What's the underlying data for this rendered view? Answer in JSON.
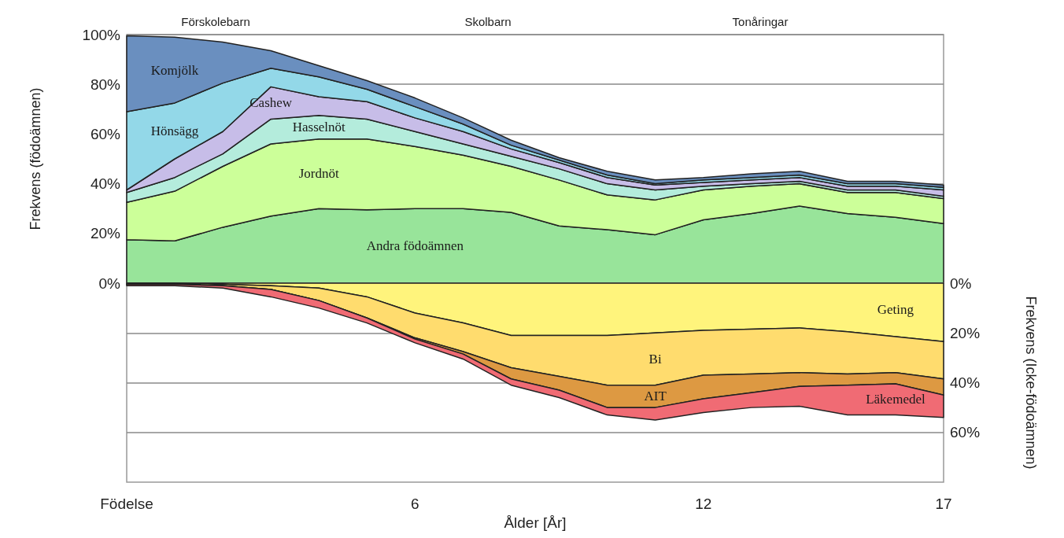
{
  "chart_data": [
    {
      "type": "area",
      "stacked": true,
      "ylabel": "Frekvens (födoämnen)",
      "annotations": [
        "Förskolebarn",
        "Skolbarn",
        "Tonåringar"
      ],
      "x": [
        0,
        1,
        2,
        3,
        4,
        5,
        6,
        7,
        8,
        9,
        10,
        11,
        12,
        13,
        14,
        15,
        16,
        17
      ],
      "xlim": [
        0,
        17
      ],
      "tick_labels": "y",
      "ylim": [
        0,
        100
      ],
      "yticks": [
        {
          "value": 0,
          "label": "0%"
        },
        {
          "value": 20,
          "label": "20%"
        },
        {
          "value": 40,
          "label": "40%"
        },
        {
          "value": 60,
          "label": "60%"
        },
        {
          "value": 80,
          "label": "80%"
        },
        {
          "value": 100,
          "label": "100%"
        }
      ],
      "grid": "y",
      "series": [
        {
          "name": "Andra födoämnen",
          "color": "#98e49a",
          "values": [
            17.5,
            17,
            22.5,
            27,
            30,
            29.5,
            30,
            30,
            28.5,
            23,
            21.5,
            19.5,
            25.5,
            28,
            31,
            28,
            26.5,
            24
          ]
        },
        {
          "name": "Jordnöt",
          "color": "#ccff99",
          "values": [
            15,
            20,
            24.5,
            29,
            28,
            28.5,
            25,
            21.5,
            18.5,
            18.5,
            14,
            14,
            12,
            11,
            9,
            8.5,
            10,
            10
          ]
        },
        {
          "name": "Hasselnöt",
          "color": "#b4ecdc",
          "values": [
            4,
            5.5,
            5,
            10,
            9.5,
            8,
            6,
            4.5,
            4,
            4.5,
            4.5,
            4,
            1.5,
            1,
            1,
            1,
            1,
            1
          ]
        },
        {
          "name": "Cashew",
          "color": "#c7bde8",
          "values": [
            1,
            7.5,
            9,
            13,
            7.5,
            7,
            5.5,
            5,
            3,
            2.5,
            2.5,
            2,
            1.5,
            1.5,
            1.5,
            1.5,
            1.5,
            2.5
          ]
        },
        {
          "name": "Hönsägg",
          "color": "#93d8e8",
          "values": [
            31.5,
            22.5,
            19.5,
            7.5,
            8,
            5,
            4.5,
            3,
            1.5,
            1,
            1,
            0.5,
            1,
            1,
            1,
            1,
            1,
            1
          ]
        },
        {
          "name": "Komjölk",
          "color": "#6a8fbf",
          "values": [
            30.5,
            26.5,
            16.5,
            7,
            4.5,
            3.5,
            3.5,
            2.5,
            2,
            1,
            1.5,
            1.5,
            1,
            1.5,
            1.5,
            1,
            1,
            1
          ]
        }
      ]
    },
    {
      "type": "area",
      "stacked": true,
      "xlabel": "Ålder [År]",
      "y2label": "Frekvens (Icke-födoämnen)",
      "x": [
        0,
        1,
        2,
        3,
        4,
        5,
        6,
        7,
        8,
        9,
        10,
        11,
        12,
        13,
        14,
        15,
        16,
        17
      ],
      "xlim": [
        0,
        17
      ],
      "xticks": [
        {
          "value": 0,
          "label": "Födelse"
        },
        6,
        12,
        17
      ],
      "y2lim": [
        80,
        0
      ],
      "y2ticks": [
        {
          "value": 0,
          "label": "0%"
        },
        {
          "value": 20,
          "label": "20%"
        },
        {
          "value": 40,
          "label": "40%"
        },
        {
          "value": 60,
          "label": "60%"
        }
      ],
      "grid": "y",
      "series": [
        {
          "name": "Geting",
          "color": "#fff47c",
          "axis": "y2",
          "values": [
            0,
            0,
            0.5,
            1,
            2,
            5.5,
            12,
            16,
            21,
            21,
            21,
            20,
            19,
            18.5,
            18,
            19.5,
            21.5,
            23.5
          ]
        },
        {
          "name": "Bi",
          "color": "#ffdc6e",
          "axis": "y2",
          "values": [
            0.5,
            0.5,
            0.5,
            1.5,
            5,
            8.5,
            10,
            11.5,
            13,
            16.5,
            20,
            21,
            18,
            18,
            18,
            17,
            14.5,
            15
          ]
        },
        {
          "name": "AIT",
          "color": "#dd9942",
          "axis": "y2",
          "values": [
            0,
            0,
            0,
            0,
            0,
            0,
            0.5,
            1,
            4.5,
            5.5,
            9,
            9,
            9.5,
            7.5,
            5.5,
            4.5,
            4.5,
            6.5
          ]
        },
        {
          "name": "Läkemedel",
          "color": "#f06b74",
          "axis": "y2",
          "values": [
            0.5,
            0.5,
            1,
            3,
            3,
            2,
            1.5,
            2,
            2.5,
            3,
            3,
            5,
            5.5,
            6,
            8,
            12,
            12.5,
            9
          ]
        }
      ]
    }
  ]
}
